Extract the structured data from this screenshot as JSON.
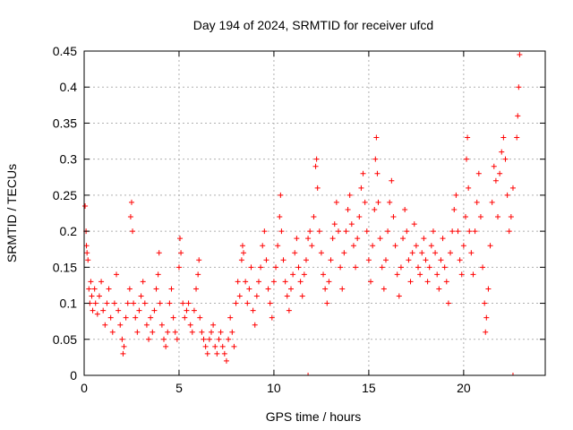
{
  "chart_data": {
    "type": "scatter",
    "title": "Day 194 of 2024, SRMTID for receiver ufcd",
    "xlabel": "GPS time / hours",
    "ylabel": "SRMTID / TECUs",
    "xlim": [
      0,
      24.3
    ],
    "ylim": [
      0,
      0.45
    ],
    "xticks": [
      0,
      5,
      10,
      15,
      20
    ],
    "yticks": [
      0,
      0.05,
      0.1,
      0.15,
      0.2,
      0.25,
      0.3,
      0.35,
      0.4,
      0.45
    ],
    "xtick_labels": [
      "0",
      "5",
      "10",
      "15",
      "20"
    ],
    "ytick_labels": [
      "0",
      "0.05",
      "0.1",
      "0.15",
      "0.2",
      "0.25",
      "0.3",
      "0.35",
      "0.4",
      "0.45"
    ],
    "grid": true,
    "marker": "plus",
    "color": "#ff0000",
    "series": [
      {
        "values_xy": [
          [
            0.05,
            0.235
          ],
          [
            0.1,
            0.2
          ],
          [
            0.12,
            0.18
          ],
          [
            0.15,
            0.17
          ],
          [
            0.2,
            0.16
          ],
          [
            0.25,
            0.12
          ],
          [
            0.3,
            0.1
          ],
          [
            0.35,
            0.13
          ],
          [
            0.4,
            0.11
          ],
          [
            0.45,
            0.09
          ],
          [
            0.55,
            0.12
          ],
          [
            0.6,
            0.1
          ],
          [
            0.7,
            0.085
          ],
          [
            0.8,
            0.11
          ],
          [
            0.9,
            0.13
          ],
          [
            1.0,
            0.09
          ],
          [
            1.1,
            0.07
          ],
          [
            1.2,
            0.1
          ],
          [
            1.3,
            0.12
          ],
          [
            1.4,
            0.08
          ],
          [
            1.5,
            0.06
          ],
          [
            1.6,
            0.1
          ],
          [
            1.7,
            0.14
          ],
          [
            1.8,
            0.09
          ],
          [
            1.9,
            0.07
          ],
          [
            2.0,
            0.05
          ],
          [
            2.05,
            0.03
          ],
          [
            2.1,
            0.04
          ],
          [
            2.2,
            0.08
          ],
          [
            2.3,
            0.1
          ],
          [
            2.4,
            0.12
          ],
          [
            2.45,
            0.22
          ],
          [
            2.5,
            0.24
          ],
          [
            2.55,
            0.2
          ],
          [
            2.6,
            0.1
          ],
          [
            2.7,
            0.08
          ],
          [
            2.8,
            0.06
          ],
          [
            2.9,
            0.09
          ],
          [
            3.0,
            0.11
          ],
          [
            3.1,
            0.13
          ],
          [
            3.2,
            0.1
          ],
          [
            3.3,
            0.07
          ],
          [
            3.4,
            0.05
          ],
          [
            3.5,
            0.08
          ],
          [
            3.6,
            0.06
          ],
          [
            3.7,
            0.09
          ],
          [
            3.8,
            0.12
          ],
          [
            3.9,
            0.14
          ],
          [
            3.95,
            0.17
          ],
          [
            4.0,
            0.1
          ],
          [
            4.1,
            0.07
          ],
          [
            4.2,
            0.05
          ],
          [
            4.3,
            0.04
          ],
          [
            4.4,
            0.06
          ],
          [
            4.5,
            0.1
          ],
          [
            4.6,
            0.12
          ],
          [
            4.7,
            0.08
          ],
          [
            4.8,
            0.06
          ],
          [
            4.9,
            0.05
          ],
          [
            5.0,
            0.15
          ],
          [
            5.05,
            0.19
          ],
          [
            5.1,
            0.17
          ],
          [
            5.2,
            0.1
          ],
          [
            5.3,
            0.08
          ],
          [
            5.4,
            0.09
          ],
          [
            5.5,
            0.1
          ],
          [
            5.6,
            0.07
          ],
          [
            5.7,
            0.06
          ],
          [
            5.8,
            0.09
          ],
          [
            5.9,
            0.12
          ],
          [
            6.0,
            0.14
          ],
          [
            6.05,
            0.16
          ],
          [
            6.1,
            0.08
          ],
          [
            6.2,
            0.06
          ],
          [
            6.3,
            0.05
          ],
          [
            6.4,
            0.04
          ],
          [
            6.5,
            0.03
          ],
          [
            6.6,
            0.05
          ],
          [
            6.7,
            0.06
          ],
          [
            6.8,
            0.07
          ],
          [
            6.9,
            0.04
          ],
          [
            7.0,
            0.03
          ],
          [
            7.1,
            0.05
          ],
          [
            7.2,
            0.06
          ],
          [
            7.3,
            0.04
          ],
          [
            7.4,
            0.03
          ],
          [
            7.5,
            0.02
          ],
          [
            7.6,
            0.05
          ],
          [
            7.7,
            0.08
          ],
          [
            7.8,
            0.06
          ],
          [
            7.9,
            0.04
          ],
          [
            8.0,
            0.1
          ],
          [
            8.1,
            0.13
          ],
          [
            8.2,
            0.11
          ],
          [
            8.3,
            0.16
          ],
          [
            8.35,
            0.18
          ],
          [
            8.4,
            0.17
          ],
          [
            8.5,
            0.13
          ],
          [
            8.6,
            0.1
          ],
          [
            8.7,
            0.12
          ],
          [
            8.8,
            0.15
          ],
          [
            8.9,
            0.09
          ],
          [
            9.0,
            0.07
          ],
          [
            9.1,
            0.11
          ],
          [
            9.2,
            0.13
          ],
          [
            9.3,
            0.15
          ],
          [
            9.4,
            0.18
          ],
          [
            9.5,
            0.2
          ],
          [
            9.6,
            0.16
          ],
          [
            9.7,
            0.12
          ],
          [
            9.8,
            0.1
          ],
          [
            9.9,
            0.08
          ],
          [
            10.0,
            0.13
          ],
          [
            10.1,
            0.15
          ],
          [
            10.2,
            0.18
          ],
          [
            10.3,
            0.22
          ],
          [
            10.35,
            0.25
          ],
          [
            10.4,
            0.2
          ],
          [
            10.5,
            0.16
          ],
          [
            10.6,
            0.13
          ],
          [
            10.7,
            0.11
          ],
          [
            10.8,
            0.09
          ],
          [
            10.9,
            0.12
          ],
          [
            11.0,
            0.14
          ],
          [
            11.1,
            0.17
          ],
          [
            11.2,
            0.19
          ],
          [
            11.3,
            0.15
          ],
          [
            11.4,
            0.13
          ],
          [
            11.5,
            0.11
          ],
          [
            11.6,
            0.14
          ],
          [
            11.7,
            0.16
          ],
          [
            11.8,
            0.19
          ],
          [
            11.9,
            0.2
          ],
          [
            12.0,
            0.18
          ],
          [
            12.1,
            0.22
          ],
          [
            12.2,
            0.29
          ],
          [
            12.25,
            0.3
          ],
          [
            12.3,
            0.26
          ],
          [
            12.4,
            0.2
          ],
          [
            12.5,
            0.17
          ],
          [
            12.6,
            0.14
          ],
          [
            12.7,
            0.12
          ],
          [
            12.8,
            0.1
          ],
          [
            12.9,
            0.13
          ],
          [
            13.0,
            0.16
          ],
          [
            13.1,
            0.19
          ],
          [
            13.2,
            0.21
          ],
          [
            13.3,
            0.24
          ],
          [
            13.4,
            0.2
          ],
          [
            13.5,
            0.15
          ],
          [
            13.6,
            0.12
          ],
          [
            13.7,
            0.17
          ],
          [
            13.8,
            0.2
          ],
          [
            13.9,
            0.23
          ],
          [
            14.0,
            0.25
          ],
          [
            14.1,
            0.21
          ],
          [
            14.2,
            0.18
          ],
          [
            14.3,
            0.15
          ],
          [
            14.4,
            0.19
          ],
          [
            14.5,
            0.22
          ],
          [
            14.6,
            0.26
          ],
          [
            14.7,
            0.28
          ],
          [
            14.8,
            0.24
          ],
          [
            14.9,
            0.2
          ],
          [
            15.0,
            0.16
          ],
          [
            15.1,
            0.13
          ],
          [
            15.2,
            0.18
          ],
          [
            15.3,
            0.23
          ],
          [
            15.35,
            0.3
          ],
          [
            15.4,
            0.33
          ],
          [
            15.45,
            0.28
          ],
          [
            15.5,
            0.24
          ],
          [
            15.6,
            0.19
          ],
          [
            15.7,
            0.15
          ],
          [
            15.8,
            0.12
          ],
          [
            15.9,
            0.16
          ],
          [
            16.0,
            0.2
          ],
          [
            16.1,
            0.24
          ],
          [
            16.2,
            0.27
          ],
          [
            16.3,
            0.22
          ],
          [
            16.4,
            0.18
          ],
          [
            16.5,
            0.14
          ],
          [
            16.6,
            0.11
          ],
          [
            16.7,
            0.15
          ],
          [
            16.8,
            0.19
          ],
          [
            16.9,
            0.23
          ],
          [
            17.0,
            0.2
          ],
          [
            17.1,
            0.16
          ],
          [
            17.2,
            0.13
          ],
          [
            17.3,
            0.17
          ],
          [
            17.4,
            0.21
          ],
          [
            17.5,
            0.18
          ],
          [
            17.6,
            0.15
          ],
          [
            17.7,
            0.14
          ],
          [
            17.8,
            0.17
          ],
          [
            17.9,
            0.19
          ],
          [
            18.0,
            0.16
          ],
          [
            18.1,
            0.13
          ],
          [
            18.2,
            0.15
          ],
          [
            18.3,
            0.18
          ],
          [
            18.4,
            0.2
          ],
          [
            18.5,
            0.17
          ],
          [
            18.6,
            0.14
          ],
          [
            18.7,
            0.12
          ],
          [
            18.8,
            0.16
          ],
          [
            18.9,
            0.19
          ],
          [
            19.0,
            0.15
          ],
          [
            19.1,
            0.13
          ],
          [
            19.2,
            0.1
          ],
          [
            19.3,
            0.17
          ],
          [
            19.4,
            0.2
          ],
          [
            19.5,
            0.23
          ],
          [
            19.6,
            0.25
          ],
          [
            19.7,
            0.2
          ],
          [
            19.8,
            0.16
          ],
          [
            19.9,
            0.14
          ],
          [
            20.0,
            0.18
          ],
          [
            20.1,
            0.22
          ],
          [
            20.15,
            0.3
          ],
          [
            20.2,
            0.33
          ],
          [
            20.25,
            0.26
          ],
          [
            20.3,
            0.2
          ],
          [
            20.4,
            0.17
          ],
          [
            20.5,
            0.14
          ],
          [
            20.6,
            0.2
          ],
          [
            20.7,
            0.24
          ],
          [
            20.8,
            0.28
          ],
          [
            20.9,
            0.22
          ],
          [
            21.0,
            0.15
          ],
          [
            21.1,
            0.1
          ],
          [
            21.15,
            0.06
          ],
          [
            21.2,
            0.08
          ],
          [
            21.3,
            0.12
          ],
          [
            21.4,
            0.18
          ],
          [
            21.5,
            0.24
          ],
          [
            21.6,
            0.29
          ],
          [
            21.7,
            0.27
          ],
          [
            21.8,
            0.22
          ],
          [
            21.9,
            0.28
          ],
          [
            22.0,
            0.31
          ],
          [
            22.1,
            0.33
          ],
          [
            22.2,
            0.3
          ],
          [
            22.3,
            0.25
          ],
          [
            22.4,
            0.2
          ],
          [
            22.5,
            0.22
          ],
          [
            22.6,
            0.26
          ],
          [
            22.8,
            0.33
          ],
          [
            22.85,
            0.36
          ],
          [
            22.9,
            0.4
          ],
          [
            22.95,
            0.445
          ]
        ]
      }
    ],
    "zero_markers_x": [
      11.8,
      22.6
    ]
  }
}
